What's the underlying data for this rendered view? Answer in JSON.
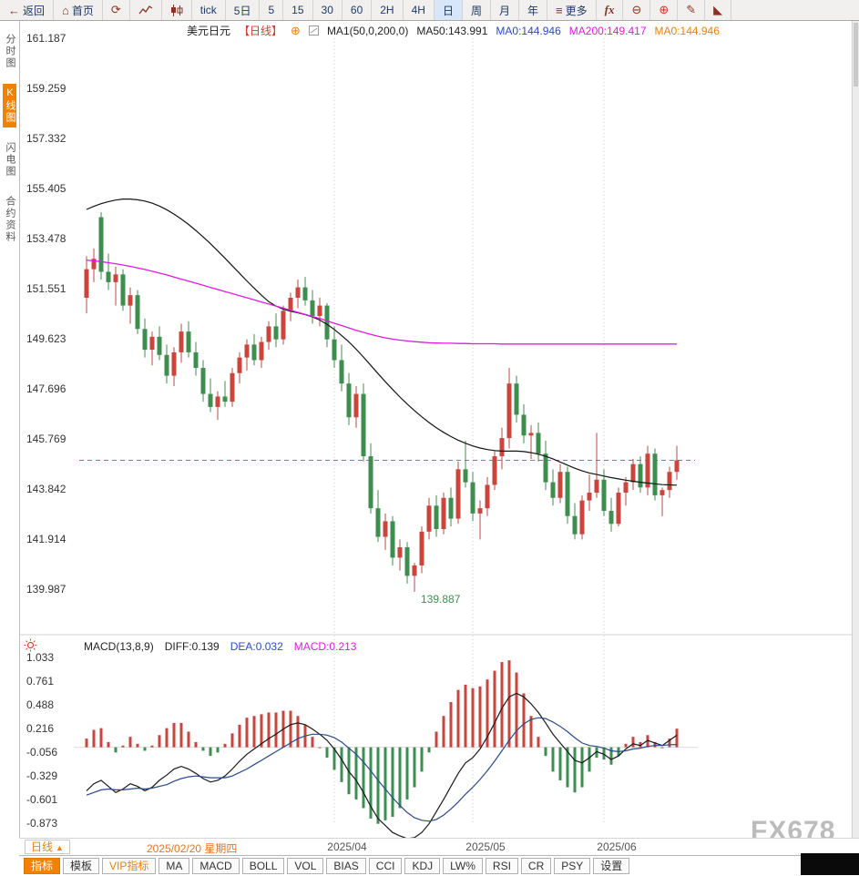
{
  "toolbar": {
    "back_label": "返回",
    "home_label": "首页",
    "periods": [
      "tick",
      "5日",
      "5",
      "15",
      "30",
      "60",
      "2H",
      "4H",
      "日",
      "周",
      "月",
      "年"
    ],
    "active_period": "日",
    "more_label": "更多",
    "fx_label": "fx",
    "icons": {
      "back": "←",
      "home": "⌂",
      "refresh": "⟳",
      "menu": "≡",
      "zoom_out": "⊖",
      "zoom_in": "⊕",
      "pencil": "✎",
      "setsquare": "◣"
    }
  },
  "sidebar": {
    "items": [
      {
        "label": "分时图",
        "active": false
      },
      {
        "label": "K线图",
        "active": true
      },
      {
        "label": "闪电图",
        "active": false
      },
      {
        "label": "合约资料",
        "active": false
      }
    ]
  },
  "legend": {
    "symbol": "美元日元",
    "period_tag": "【日线】",
    "fav_icon": "⊕",
    "ma_group": "MA1(50,0,200,0)",
    "ma50": "MA50:143.991",
    "ma0_blue": "MA0:144.946",
    "ma200": "MA200:149.417",
    "ma0_orange": "MA0:144.946"
  },
  "macd_legend": {
    "title": "MACD(13,8,9)",
    "diff": "DIFF:0.139",
    "dea": "DEA:0.032",
    "macd": "MACD:0.213"
  },
  "axes": {
    "price_labels": [
      "161.187",
      "159.259",
      "157.332",
      "155.405",
      "153.478",
      "151.551",
      "149.623",
      "147.696",
      "145.769",
      "143.842",
      "141.914",
      "139.987"
    ],
    "macd_labels": [
      "1.033",
      "0.761",
      "0.488",
      "0.216",
      "-0.056",
      "-0.329",
      "-0.601",
      "-0.873"
    ]
  },
  "dates": {
    "start_date": "2025/02/20 星期四",
    "ticks": [
      {
        "label": "2025/04",
        "index": 34
      },
      {
        "label": "2025/05",
        "index": 53
      },
      {
        "label": "2025/06",
        "index": 71
      }
    ]
  },
  "footer": {
    "period_box": "日线",
    "dropdown_arrow": "▲",
    "tabs": [
      {
        "label": "指标",
        "active": true
      },
      {
        "label": "模板"
      },
      {
        "label": "VIP指标",
        "vip": true
      },
      {
        "label": "MA"
      },
      {
        "label": "MACD"
      },
      {
        "label": "BOLL"
      },
      {
        "label": "VOL"
      },
      {
        "label": "BIAS"
      },
      {
        "label": "CCI"
      },
      {
        "label": "KDJ"
      },
      {
        "label": "LW%"
      },
      {
        "label": "RSI"
      },
      {
        "label": "CR"
      },
      {
        "label": "PSY"
      },
      {
        "label": "设置"
      }
    ]
  },
  "annotations": {
    "low_label": "139.887",
    "low_index": 45,
    "last_price": 144.946
  },
  "watermark": "FX678",
  "colors": {
    "up": "#c9463c",
    "down": "#3e8e4f",
    "ma50": "#141414",
    "ma200": "#e01ae0",
    "diff": "#1a1a1a",
    "dea": "#2a4a8a",
    "dashed": "#2fa3a0",
    "grid": "#c9c9c9",
    "axis_text": "#333333"
  },
  "chart_data": {
    "type": "candlestick",
    "title": "美元日元 日线 (USD/JPY daily)",
    "x_unit": "trading-day",
    "price_range": {
      "min": 139.987,
      "max": 161.187
    },
    "macd_range": {
      "min": -0.873,
      "max": 1.033
    },
    "candles": [
      [
        151.2,
        152.8,
        150.6,
        152.3
      ],
      [
        152.3,
        153.1,
        151.8,
        152.7
      ],
      [
        154.3,
        154.5,
        151.9,
        152.2
      ],
      [
        152.2,
        152.9,
        151.5,
        151.8
      ],
      [
        151.8,
        152.4,
        150.9,
        152.1
      ],
      [
        152.1,
        152.3,
        150.7,
        150.9
      ],
      [
        150.9,
        151.6,
        150.2,
        151.3
      ],
      [
        151.3,
        151.5,
        149.8,
        150.0
      ],
      [
        150.0,
        150.4,
        148.9,
        149.2
      ],
      [
        149.2,
        149.9,
        148.6,
        149.7
      ],
      [
        149.7,
        150.1,
        148.8,
        149.0
      ],
      [
        149.0,
        149.4,
        147.9,
        148.2
      ],
      [
        148.2,
        149.3,
        147.8,
        149.1
      ],
      [
        149.1,
        150.2,
        148.7,
        149.9
      ],
      [
        149.9,
        150.3,
        148.9,
        149.1
      ],
      [
        149.1,
        149.5,
        148.2,
        148.5
      ],
      [
        148.5,
        148.8,
        147.2,
        147.5
      ],
      [
        147.5,
        148.1,
        146.8,
        147.0
      ],
      [
        147.0,
        147.6,
        146.5,
        147.4
      ],
      [
        147.4,
        148.0,
        147.0,
        147.2
      ],
      [
        147.2,
        148.5,
        147.0,
        148.3
      ],
      [
        148.3,
        149.1,
        147.9,
        148.9
      ],
      [
        148.9,
        149.6,
        148.4,
        149.4
      ],
      [
        149.4,
        149.8,
        148.6,
        148.8
      ],
      [
        148.8,
        149.7,
        148.5,
        149.5
      ],
      [
        149.5,
        150.3,
        149.2,
        150.1
      ],
      [
        150.1,
        150.6,
        149.3,
        149.6
      ],
      [
        149.6,
        150.9,
        149.4,
        150.7
      ],
      [
        150.7,
        151.4,
        150.3,
        151.2
      ],
      [
        151.2,
        151.9,
        150.8,
        151.6
      ],
      [
        151.6,
        152.0,
        150.9,
        151.1
      ],
      [
        151.1,
        151.5,
        150.2,
        150.5
      ],
      [
        150.5,
        151.2,
        150.1,
        150.9
      ],
      [
        150.9,
        151.0,
        149.3,
        149.6
      ],
      [
        149.6,
        150.1,
        148.5,
        148.8
      ],
      [
        148.8,
        149.4,
        147.6,
        147.9
      ],
      [
        147.9,
        148.3,
        146.3,
        146.6
      ],
      [
        146.6,
        147.8,
        146.2,
        147.5
      ],
      [
        147.5,
        147.9,
        144.9,
        145.1
      ],
      [
        145.1,
        145.6,
        142.9,
        143.1
      ],
      [
        143.1,
        143.8,
        141.8,
        142.0
      ],
      [
        142.0,
        142.9,
        141.5,
        142.6
      ],
      [
        142.6,
        142.8,
        140.9,
        141.2
      ],
      [
        141.2,
        141.9,
        140.7,
        141.6
      ],
      [
        141.6,
        141.8,
        140.2,
        140.5
      ],
      [
        140.5,
        141.0,
        139.887,
        140.9
      ],
      [
        140.9,
        142.4,
        140.6,
        142.2
      ],
      [
        142.2,
        143.5,
        141.9,
        143.2
      ],
      [
        143.2,
        143.6,
        142.0,
        142.3
      ],
      [
        142.3,
        143.7,
        142.1,
        143.5
      ],
      [
        143.5,
        143.9,
        142.4,
        142.7
      ],
      [
        142.7,
        144.9,
        142.5,
        144.6
      ],
      [
        144.6,
        145.7,
        143.9,
        144.1
      ],
      [
        144.1,
        144.5,
        142.6,
        142.9
      ],
      [
        142.9,
        143.4,
        141.9,
        143.1
      ],
      [
        143.1,
        144.3,
        142.8,
        144.0
      ],
      [
        144.0,
        145.3,
        143.8,
        145.1
      ],
      [
        145.1,
        146.2,
        144.6,
        145.8
      ],
      [
        145.8,
        148.5,
        145.4,
        147.9
      ],
      [
        147.9,
        148.2,
        146.4,
        146.7
      ],
      [
        146.7,
        147.1,
        145.6,
        145.9
      ],
      [
        145.9,
        146.3,
        145.0,
        146.0
      ],
      [
        146.0,
        146.4,
        144.9,
        145.2
      ],
      [
        145.2,
        145.7,
        143.8,
        144.1
      ],
      [
        144.1,
        144.6,
        143.2,
        143.5
      ],
      [
        143.5,
        144.8,
        143.3,
        144.5
      ],
      [
        144.5,
        144.7,
        142.5,
        142.8
      ],
      [
        142.8,
        143.3,
        141.9,
        142.1
      ],
      [
        142.1,
        143.6,
        141.9,
        143.4
      ],
      [
        143.4,
        144.4,
        143.0,
        143.7
      ],
      [
        143.7,
        146.0,
        143.5,
        144.2
      ],
      [
        144.2,
        144.6,
        142.8,
        143.0
      ],
      [
        143.0,
        143.5,
        142.2,
        142.5
      ],
      [
        142.5,
        143.9,
        142.4,
        143.7
      ],
      [
        143.7,
        144.3,
        143.2,
        144.1
      ],
      [
        144.1,
        145.0,
        143.8,
        144.8
      ],
      [
        144.8,
        145.1,
        143.7,
        143.9
      ],
      [
        143.9,
        145.5,
        143.6,
        145.2
      ],
      [
        145.2,
        145.4,
        143.4,
        143.6
      ],
      [
        143.6,
        143.9,
        142.8,
        143.8
      ],
      [
        143.8,
        144.7,
        143.5,
        144.5
      ],
      [
        144.5,
        145.5,
        144.2,
        144.946
      ]
    ],
    "ma50": [
      154.6,
      154.72,
      154.82,
      154.9,
      154.96,
      155.0,
      155.0,
      154.97,
      154.92,
      154.84,
      154.73,
      154.59,
      154.42,
      154.23,
      154.02,
      153.79,
      153.54,
      153.28,
      153.0,
      152.72,
      152.43,
      152.14,
      151.85,
      151.57,
      151.3,
      151.05,
      150.88,
      150.76,
      150.68,
      150.62,
      150.55,
      150.46,
      150.34,
      150.18,
      149.98,
      149.75,
      149.5,
      149.22,
      148.92,
      148.6,
      148.28,
      147.97,
      147.67,
      147.38,
      147.11,
      146.86,
      146.62,
      146.4,
      146.2,
      146.02,
      145.86,
      145.72,
      145.6,
      145.5,
      145.42,
      145.36,
      145.32,
      145.3,
      145.3,
      145.3,
      145.28,
      145.24,
      145.18,
      145.1,
      145.0,
      144.88,
      144.76,
      144.64,
      144.54,
      144.46,
      144.4,
      144.34,
      144.28,
      144.23,
      144.18,
      144.14,
      144.1,
      144.07,
      144.04,
      144.01,
      144.0,
      143.99
    ],
    "ma200": [
      152.65,
      152.62,
      152.59,
      152.55,
      152.51,
      152.46,
      152.41,
      152.35,
      152.29,
      152.22,
      152.15,
      152.08,
      152.0,
      151.92,
      151.84,
      151.76,
      151.68,
      151.6,
      151.52,
      151.44,
      151.36,
      151.28,
      151.2,
      151.12,
      151.04,
      150.96,
      150.88,
      150.8,
      150.72,
      150.64,
      150.56,
      150.48,
      150.4,
      150.31,
      150.22,
      150.13,
      150.04,
      149.95,
      149.87,
      149.79,
      149.72,
      149.66,
      149.61,
      149.57,
      149.54,
      149.51,
      149.49,
      149.47,
      149.46,
      149.45,
      149.45,
      149.44,
      149.44,
      149.43,
      149.43,
      149.43,
      149.43,
      149.42,
      149.42,
      149.42,
      149.42,
      149.42,
      149.42,
      149.42,
      149.42,
      149.42,
      149.42,
      149.42,
      149.42,
      149.42,
      149.42,
      149.42,
      149.42,
      149.42,
      149.42,
      149.42,
      149.42,
      149.42,
      149.42,
      149.42,
      149.42,
      149.417
    ],
    "macd_diff": [
      -0.5,
      -0.42,
      -0.38,
      -0.45,
      -0.52,
      -0.48,
      -0.42,
      -0.45,
      -0.5,
      -0.46,
      -0.38,
      -0.32,
      -0.25,
      -0.22,
      -0.25,
      -0.3,
      -0.36,
      -0.4,
      -0.38,
      -0.33,
      -0.25,
      -0.16,
      -0.08,
      -0.02,
      0.04,
      0.1,
      0.15,
      0.21,
      0.26,
      0.28,
      0.26,
      0.21,
      0.15,
      0.08,
      -0.02,
      -0.14,
      -0.28,
      -0.38,
      -0.52,
      -0.68,
      -0.82,
      -0.9,
      -0.98,
      -1.02,
      -1.05,
      -1.04,
      -0.98,
      -0.88,
      -0.74,
      -0.6,
      -0.45,
      -0.3,
      -0.18,
      -0.12,
      -0.02,
      0.12,
      0.28,
      0.45,
      0.58,
      0.62,
      0.58,
      0.5,
      0.4,
      0.28,
      0.15,
      0.05,
      -0.05,
      -0.15,
      -0.18,
      -0.12,
      -0.05,
      -0.08,
      -0.14,
      -0.1,
      -0.02,
      0.04,
      0.02,
      0.08,
      0.05,
      0.02,
      0.08,
      0.139
    ],
    "macd_dea": [
      -0.55,
      -0.52,
      -0.49,
      -0.48,
      -0.49,
      -0.49,
      -0.48,
      -0.47,
      -0.48,
      -0.47,
      -0.45,
      -0.43,
      -0.39,
      -0.36,
      -0.34,
      -0.33,
      -0.34,
      -0.35,
      -0.35,
      -0.35,
      -0.33,
      -0.29,
      -0.25,
      -0.2,
      -0.15,
      -0.1,
      -0.05,
      0.0,
      0.05,
      0.1,
      0.13,
      0.15,
      0.15,
      0.14,
      0.11,
      0.06,
      -0.01,
      -0.08,
      -0.17,
      -0.27,
      -0.38,
      -0.48,
      -0.58,
      -0.67,
      -0.75,
      -0.81,
      -0.84,
      -0.85,
      -0.83,
      -0.78,
      -0.71,
      -0.63,
      -0.54,
      -0.46,
      -0.37,
      -0.27,
      -0.16,
      -0.04,
      0.08,
      0.19,
      0.27,
      0.32,
      0.34,
      0.33,
      0.29,
      0.24,
      0.18,
      0.11,
      0.05,
      0.02,
      0.01,
      -0.01,
      -0.04,
      -0.05,
      -0.04,
      -0.02,
      -0.01,
      0.01,
      0.02,
      0.02,
      0.03,
      0.032
    ],
    "macd_hist_rule": "2*(diff-dea)"
  }
}
